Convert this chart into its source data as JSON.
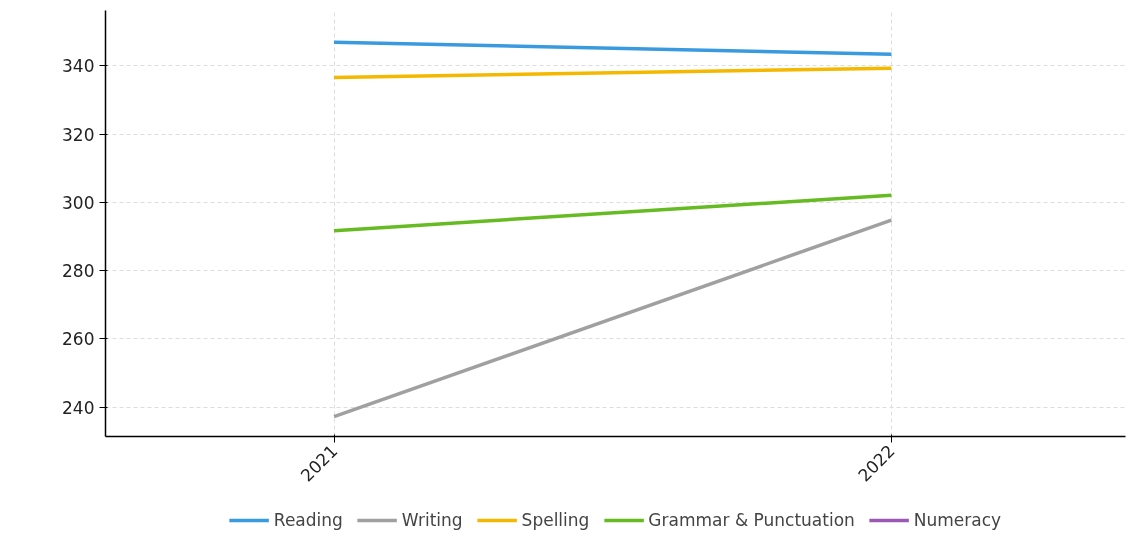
{
  "chart_data": {
    "type": "line",
    "x": [
      2021,
      2022
    ],
    "xlim": [
      2020.59,
      2022.42
    ],
    "xticks": [
      2021,
      2022
    ],
    "ylim": [
      231.4,
      356.2
    ],
    "yticks": [
      240,
      260,
      280,
      300,
      320,
      340
    ],
    "grid": true,
    "legend": "bottom",
    "line_style": "solid",
    "marker": "none",
    "series": [
      {
        "name": "Reading",
        "color": "#3a9ae0",
        "values": [
          346.9,
          343.4
        ]
      },
      {
        "name": "Writing",
        "color": "#a0a0a0",
        "values": [
          237.2,
          294.8
        ]
      },
      {
        "name": "Spelling",
        "color": "#f5b800",
        "values": [
          336.6,
          339.3
        ]
      },
      {
        "name": "Grammar & Punctuation",
        "color": "#66bb22",
        "values": [
          291.7,
          302.1
        ]
      },
      {
        "name": "Numeracy",
        "color": "#9b59b6",
        "values": [
          null,
          null
        ]
      }
    ]
  }
}
